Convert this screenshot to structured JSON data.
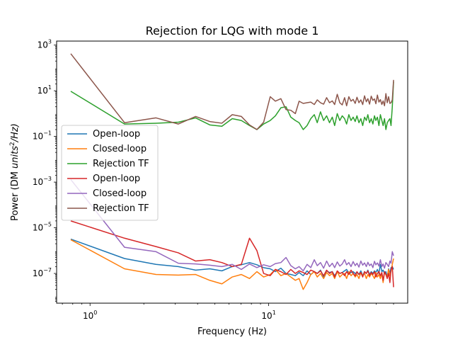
{
  "chart_data": {
    "type": "line",
    "title": "Rejection for LQG with mode 1",
    "xlabel": "Frequency (Hz)",
    "ylabel_main": "Power (DM ",
    "ylabel_italic": "units",
    "ylabel_sup": "2",
    "ylabel_tail": "/Hz)",
    "x_scale": "log",
    "y_scale": "log",
    "xlim": [
      0.65,
      60
    ],
    "ylim": [
      5e-09,
      1500
    ],
    "x_ticks": [
      {
        "value": 1,
        "base": "10",
        "exp": "0"
      },
      {
        "value": 10,
        "base": "10",
        "exp": "1"
      }
    ],
    "y_ticks": [
      {
        "value": 1e-07,
        "base": "10",
        "exp": "−7"
      },
      {
        "value": 1e-05,
        "base": "10",
        "exp": "−5"
      },
      {
        "value": 0.001,
        "base": "10",
        "exp": "−3"
      },
      {
        "value": 0.1,
        "base": "10",
        "exp": "−1"
      },
      {
        "value": 10,
        "base": "10",
        "exp": "1"
      },
      {
        "value": 1000,
        "base": "10",
        "exp": "3"
      }
    ],
    "legend_position": "center-left",
    "grid": false,
    "series": [
      {
        "name": "Open-loop",
        "color": "#1f77b4",
        "x": [
          0.78,
          1.56,
          2.34,
          3.12,
          3.9,
          4.68,
          5.47,
          6.25,
          7.03,
          7.81,
          8.59,
          9.37,
          10.2,
          10.9,
          11.7,
          12.5,
          13.3,
          14.1,
          14.8,
          15.6,
          16.4,
          17.2,
          18.0,
          18.7,
          19.5,
          20.3,
          21.1,
          21.9,
          22.7,
          23.4,
          24.2,
          25.0,
          25.8,
          26.6,
          27.3,
          28.1,
          28.9,
          29.7,
          30.5,
          31.2,
          32.0,
          32.8,
          33.6,
          34.4,
          35.2,
          35.9,
          36.7,
          37.5,
          38.3,
          39.1,
          39.8,
          40.6,
          41.4,
          42.2,
          43.0,
          43.7,
          44.5,
          45.3,
          46.1,
          46.9,
          47.7,
          48.4,
          49.2,
          50.0
        ],
        "y": [
          3.2e-06,
          4.5e-07,
          2.5e-07,
          2e-07,
          1.4e-07,
          1.6e-07,
          1.3e-07,
          2e-07,
          2.4e-07,
          3e-07,
          2.4e-07,
          1.8e-07,
          1.6e-07,
          1.2e-07,
          1.7e-07,
          1e-07,
          9e-08,
          8e-08,
          1.1e-07,
          8e-08,
          1.3e-07,
          9e-08,
          1.2e-07,
          1e-07,
          1.4e-07,
          7e-08,
          1.3e-07,
          1.1e-07,
          1.2e-07,
          8e-08,
          1.2e-07,
          1e-07,
          1.1e-07,
          1.3e-07,
          1.5e-07,
          1e-07,
          1.1e-07,
          1.2e-07,
          1e-07,
          1.1e-07,
          9e-08,
          1.3e-07,
          8e-08,
          1.2e-07,
          1e-07,
          1.4e-07,
          9e-08,
          1.2e-07,
          1e-07,
          1.3e-07,
          1.1e-07,
          1.5e-07,
          1e-07,
          2.5e-07,
          1.2e-07,
          1.4e-07,
          1e-07,
          1.2e-07,
          7e-08,
          1.6e-07,
          1e-07,
          1.8e-07,
          2e-07,
          1.5e-07
        ]
      },
      {
        "name": "Closed-loop",
        "color": "#ff7f0e",
        "x": [
          0.78,
          1.56,
          2.34,
          3.12,
          3.9,
          4.68,
          5.47,
          6.25,
          7.03,
          7.81,
          8.59,
          9.37,
          10.2,
          10.9,
          11.7,
          12.5,
          13.3,
          14.1,
          14.8,
          15.6,
          16.4,
          17.2,
          18.0,
          18.7,
          19.5,
          20.3,
          21.1,
          21.9,
          22.7,
          23.4,
          24.2,
          25.0,
          25.8,
          26.6,
          27.3,
          28.1,
          28.9,
          29.7,
          30.5,
          31.2,
          32.0,
          32.8,
          33.6,
          34.4,
          35.2,
          35.9,
          36.7,
          37.5,
          38.3,
          39.1,
          39.8,
          40.6,
          41.4,
          42.2,
          43.0,
          43.7,
          44.5,
          45.3,
          46.1,
          46.9,
          47.7,
          48.4,
          49.2,
          50.0
        ],
        "y": [
          3e-06,
          1.6e-07,
          9e-08,
          8.5e-08,
          9e-08,
          5e-08,
          3.5e-08,
          7e-08,
          9e-08,
          6e-08,
          1.2e-07,
          7e-08,
          9e-08,
          1.5e-07,
          8e-08,
          1e-07,
          7e-08,
          5e-08,
          6e-08,
          2e-08,
          4e-08,
          9e-08,
          1.2e-07,
          7e-08,
          1e-07,
          6e-08,
          1.1e-07,
          8e-08,
          1e-07,
          6e-08,
          1.2e-07,
          7e-08,
          9e-08,
          1e-07,
          6e-08,
          1.2e-07,
          8e-08,
          1e-07,
          7e-08,
          9e-08,
          6e-08,
          1.1e-07,
          8e-08,
          1e-07,
          6e-08,
          9e-08,
          7e-08,
          1e-07,
          8e-08,
          6e-08,
          1.1e-07,
          7e-08,
          9e-08,
          6e-08,
          1e-07,
          4e-08,
          1.1e-07,
          9e-08,
          7e-08,
          1.5e-07,
          8e-08,
          1.2e-07,
          2.5e-07,
          4.5e-07
        ]
      },
      {
        "name": "Rejection TF",
        "color": "#2ca02c",
        "x": [
          0.78,
          1.56,
          2.34,
          3.12,
          3.9,
          4.68,
          5.47,
          6.25,
          7.03,
          7.81,
          8.59,
          9.37,
          10.2,
          10.9,
          11.7,
          12.5,
          13.3,
          14.1,
          14.8,
          15.6,
          16.4,
          17.2,
          18.0,
          18.7,
          19.5,
          20.3,
          21.1,
          21.9,
          22.7,
          23.4,
          24.2,
          25.0,
          25.8,
          26.6,
          27.3,
          28.1,
          28.9,
          29.7,
          30.5,
          31.2,
          32.0,
          32.8,
          33.6,
          34.4,
          35.2,
          35.9,
          36.7,
          37.5,
          38.3,
          39.1,
          39.8,
          40.6,
          41.4,
          42.2,
          43.0,
          43.7,
          44.5,
          45.3,
          46.1,
          46.9,
          47.7,
          48.4,
          49.2,
          50.0
        ],
        "y": [
          9.5,
          0.35,
          0.38,
          0.42,
          0.65,
          0.32,
          0.28,
          0.6,
          0.5,
          0.3,
          0.2,
          0.35,
          0.5,
          0.8,
          1.8,
          2.0,
          0.7,
          0.5,
          0.4,
          0.2,
          0.3,
          0.6,
          0.9,
          0.4,
          1.2,
          0.5,
          0.8,
          0.4,
          0.7,
          0.3,
          1.0,
          0.5,
          0.8,
          0.6,
          0.35,
          0.9,
          0.5,
          0.7,
          0.45,
          0.8,
          0.4,
          0.6,
          0.3,
          0.7,
          0.5,
          0.9,
          0.4,
          0.6,
          0.35,
          0.8,
          0.5,
          0.7,
          0.3,
          0.9,
          0.5,
          0.3,
          0.6,
          0.2,
          0.4,
          0.5,
          0.6,
          0.3,
          2.0,
          25.0
        ]
      },
      {
        "name": "Open-loop",
        "color": "#d62728",
        "x": [
          0.78,
          1.56,
          2.34,
          3.12,
          3.9,
          4.68,
          5.47,
          6.25,
          7.03,
          7.81,
          8.59,
          9.37,
          10.2,
          10.9,
          11.7,
          12.5,
          13.3,
          14.1,
          14.8,
          15.6,
          16.4,
          17.2,
          18.0,
          18.7,
          19.5,
          20.3,
          21.1,
          21.9,
          22.7,
          23.4,
          24.2,
          25.0,
          25.8,
          26.6,
          27.3,
          28.1,
          28.9,
          29.7,
          30.5,
          31.2,
          32.0,
          32.8,
          33.6,
          34.4,
          35.2,
          35.9,
          36.7,
          37.5,
          38.3,
          39.1,
          39.8,
          40.6,
          41.4,
          42.2,
          43.0,
          43.7,
          44.5,
          45.3,
          46.1,
          46.9,
          47.7,
          48.4,
          49.2,
          50.0
        ],
        "y": [
          2e-05,
          3.5e-06,
          1.5e-06,
          8e-07,
          3.5e-07,
          4e-07,
          3e-07,
          2e-07,
          2.5e-07,
          3.5e-06,
          1e-06,
          1e-07,
          8e-08,
          1.5e-07,
          1.2e-07,
          9e-08,
          1.5e-07,
          1e-07,
          1.3e-07,
          1.1e-07,
          9e-08,
          1.4e-07,
          1.2e-07,
          1e-07,
          1.3e-07,
          8e-08,
          1.4e-07,
          1e-07,
          1.2e-07,
          7e-08,
          1.3e-07,
          1e-07,
          1.1e-07,
          8e-08,
          1.2e-07,
          9e-08,
          1.4e-07,
          1e-07,
          8e-08,
          1.2e-07,
          9e-08,
          1.1e-07,
          7e-08,
          1.2e-07,
          1e-07,
          1.3e-07,
          8e-08,
          1.1e-07,
          9e-08,
          1.2e-07,
          7e-08,
          1e-07,
          1.2e-07,
          8e-08,
          1.1e-07,
          5e-08,
          1.2e-07,
          9e-08,
          6e-08,
          1e-07,
          4e-08,
          1.5e-07,
          2e-07,
          2.5e-08
        ]
      },
      {
        "name": "Closed-loop",
        "color": "#9467bd",
        "x": [
          0.78,
          1.56,
          2.34,
          3.12,
          3.9,
          4.68,
          5.47,
          6.25,
          7.03,
          7.81,
          8.59,
          9.37,
          10.2,
          10.9,
          11.7,
          12.5,
          13.3,
          14.1,
          14.8,
          15.6,
          16.4,
          17.2,
          18.0,
          18.7,
          19.5,
          20.3,
          21.1,
          21.9,
          22.7,
          23.4,
          24.2,
          25.0,
          25.8,
          26.6,
          27.3,
          28.1,
          28.9,
          29.7,
          30.5,
          31.2,
          32.0,
          32.8,
          33.6,
          34.4,
          35.2,
          35.9,
          36.7,
          37.5,
          38.3,
          39.1,
          39.8,
          40.6,
          41.4,
          42.2,
          43.0,
          43.7,
          44.5,
          45.3,
          46.1,
          46.9,
          47.7,
          48.4,
          49.2,
          50.0
        ],
        "y": [
          0.0013,
          1.4e-06,
          9e-07,
          2.8e-07,
          2.6e-07,
          2.3e-07,
          2e-07,
          2.5e-07,
          1.5e-07,
          2.6e-07,
          1.8e-07,
          2.4e-07,
          2e-07,
          2.7e-07,
          3e-07,
          5e-07,
          2.2e-07,
          1.6e-07,
          2e-07,
          1.3e-07,
          2.5e-07,
          1.8e-07,
          4e-07,
          2.2e-07,
          3e-07,
          1.7e-07,
          3.5e-07,
          2e-07,
          2.8e-07,
          1.8e-07,
          3.2e-07,
          2.1e-07,
          2.6e-07,
          4e-07,
          2.4e-07,
          3e-07,
          2e-07,
          3.3e-07,
          2.2e-07,
          2.8e-07,
          1.9e-07,
          3.5e-07,
          2.3e-07,
          2.9e-07,
          2e-07,
          3.1e-07,
          2.2e-07,
          2.6e-07,
          1.8e-07,
          3.4e-07,
          2.4e-07,
          2.9e-07,
          2.1e-07,
          4e-07,
          2e-07,
          2.6e-07,
          1.7e-07,
          3e-07,
          2.5e-07,
          2e-07,
          3.5e-07,
          2.8e-07,
          9e-07,
          6e-07
        ]
      },
      {
        "name": "Rejection TF",
        "color": "#8c564b",
        "x": [
          0.78,
          1.56,
          2.34,
          3.12,
          3.9,
          4.68,
          5.47,
          6.25,
          7.03,
          7.81,
          8.59,
          9.37,
          10.2,
          10.9,
          11.7,
          12.5,
          13.3,
          14.1,
          14.8,
          15.6,
          16.4,
          17.2,
          18.0,
          18.7,
          19.5,
          20.3,
          21.1,
          21.9,
          22.7,
          23.4,
          24.2,
          25.0,
          25.8,
          26.6,
          27.3,
          28.1,
          28.9,
          29.7,
          30.5,
          31.2,
          32.0,
          32.8,
          33.6,
          34.4,
          35.2,
          35.9,
          36.7,
          37.5,
          38.3,
          39.1,
          39.8,
          40.6,
          41.4,
          42.2,
          43.0,
          43.7,
          44.5,
          45.3,
          46.1,
          46.9,
          47.7,
          48.4,
          49.2,
          50.0
        ],
        "y": [
          420,
          0.4,
          0.65,
          0.35,
          0.75,
          0.45,
          0.38,
          0.9,
          0.75,
          0.32,
          0.2,
          0.42,
          5.5,
          3.5,
          4.5,
          1.5,
          1.4,
          1.0,
          3.5,
          2.8,
          3.0,
          3.2,
          2.5,
          4.0,
          3.0,
          2.6,
          5.0,
          3.0,
          3.6,
          2.5,
          7.0,
          3.0,
          2.4,
          5.0,
          2.2,
          5.5,
          3.5,
          4.2,
          2.8,
          5.2,
          3.0,
          4.0,
          2.5,
          6.0,
          3.3,
          4.5,
          2.6,
          5.8,
          3.8,
          4.4,
          2.7,
          6.5,
          3.2,
          4.1,
          2.5,
          3.6,
          2.2,
          7.5,
          3.0,
          5.5,
          2.8,
          3.0,
          4.0,
          30.0
        ]
      }
    ]
  }
}
